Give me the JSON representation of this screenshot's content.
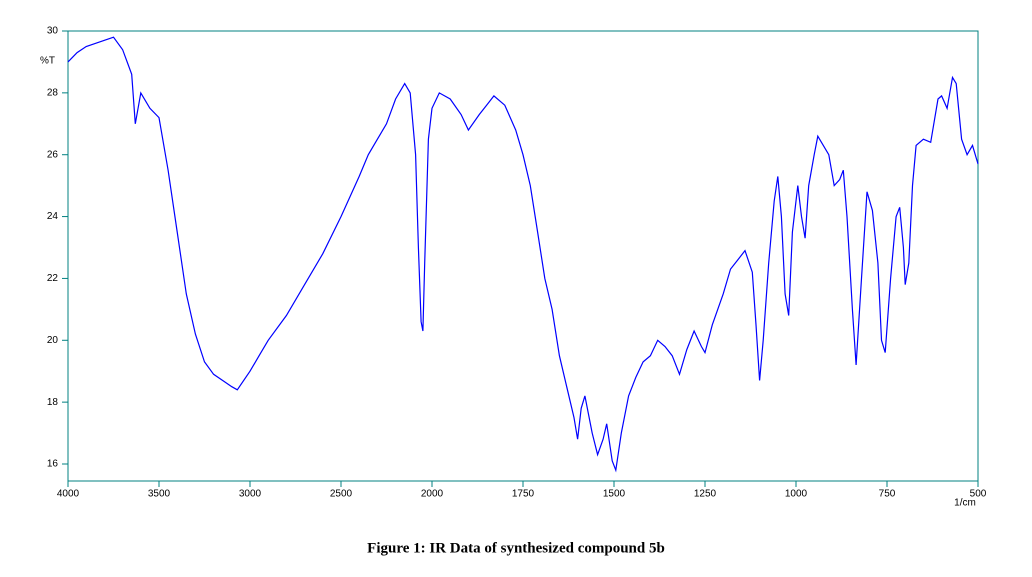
{
  "chart_data": {
    "type": "line",
    "caption": "Figure 1: IR Data of synthesized compound 5b",
    "y_label": "%T",
    "x_label": "1/cm",
    "xlim": [
      4000,
      500
    ],
    "ylim": [
      15.45,
      30
    ],
    "xticks": [
      4000,
      3500,
      3000,
      2500,
      2000,
      1750,
      1500,
      1250,
      1000,
      750,
      500
    ],
    "yticks": [
      16,
      18,
      20,
      22,
      24,
      26,
      28,
      30
    ],
    "series": [
      {
        "color": "#0000ff",
        "x": [
          4000,
          3950,
          3900,
          3850,
          3800,
          3750,
          3700,
          3650,
          3630,
          3600,
          3550,
          3500,
          3450,
          3400,
          3350,
          3300,
          3250,
          3200,
          3150,
          3100,
          3070,
          3000,
          2950,
          2900,
          2800,
          2700,
          2600,
          2500,
          2400,
          2350,
          2300,
          2250,
          2200,
          2150,
          2120,
          2090,
          2075,
          2060,
          2050,
          2040,
          2020,
          2000,
          1980,
          1950,
          1920,
          1900,
          1870,
          1850,
          1830,
          1800,
          1770,
          1750,
          1730,
          1710,
          1690,
          1670,
          1650,
          1630,
          1610,
          1600,
          1590,
          1580,
          1560,
          1545,
          1530,
          1520,
          1505,
          1495,
          1480,
          1460,
          1440,
          1420,
          1400,
          1380,
          1360,
          1340,
          1320,
          1300,
          1280,
          1260,
          1250,
          1230,
          1200,
          1180,
          1160,
          1140,
          1120,
          1110,
          1100,
          1090,
          1075,
          1060,
          1050,
          1040,
          1030,
          1020,
          1010,
          995,
          985,
          975,
          965,
          950,
          940,
          910,
          895,
          880,
          870,
          860,
          845,
          835,
          820,
          805,
          790,
          775,
          765,
          755,
          740,
          725,
          715,
          705,
          700,
          690,
          680,
          670,
          650,
          630,
          610,
          600,
          585,
          570,
          560,
          545,
          530,
          515,
          500
        ],
        "values": [
          29.0,
          29.3,
          29.5,
          29.6,
          29.7,
          29.8,
          29.4,
          28.6,
          27.0,
          28.0,
          27.5,
          27.2,
          25.5,
          23.5,
          21.5,
          20.2,
          19.3,
          18.9,
          18.7,
          18.5,
          18.4,
          19.0,
          19.5,
          20.0,
          20.8,
          21.8,
          22.8,
          24.0,
          25.3,
          26.0,
          26.5,
          27.0,
          27.8,
          28.3,
          28.0,
          26.0,
          23.0,
          20.6,
          20.3,
          22.5,
          26.5,
          27.5,
          28.0,
          27.8,
          27.3,
          26.8,
          27.3,
          27.6,
          27.9,
          27.6,
          26.8,
          26.0,
          25.0,
          23.5,
          22.0,
          21.0,
          19.5,
          18.5,
          17.5,
          16.8,
          17.8,
          18.2,
          17.0,
          16.3,
          16.8,
          17.3,
          16.1,
          15.8,
          17.0,
          18.2,
          18.8,
          19.3,
          19.5,
          20.0,
          19.8,
          19.5,
          18.9,
          19.7,
          20.3,
          19.8,
          19.6,
          20.5,
          21.5,
          22.3,
          22.6,
          22.9,
          22.2,
          20.5,
          18.7,
          20.0,
          22.5,
          24.5,
          25.3,
          24.0,
          21.5,
          20.8,
          23.5,
          25.0,
          24.0,
          23.3,
          25.0,
          26.0,
          26.6,
          26.0,
          25.0,
          25.2,
          25.5,
          24.0,
          21.0,
          19.2,
          22.0,
          24.8,
          24.2,
          22.5,
          20.0,
          19.6,
          22.0,
          24.0,
          24.3,
          23.0,
          21.8,
          22.5,
          25.0,
          26.3,
          26.5,
          26.4,
          27.8,
          27.9,
          27.5,
          28.5,
          28.3,
          26.5,
          26.0,
          26.3,
          25.7
        ]
      }
    ]
  }
}
